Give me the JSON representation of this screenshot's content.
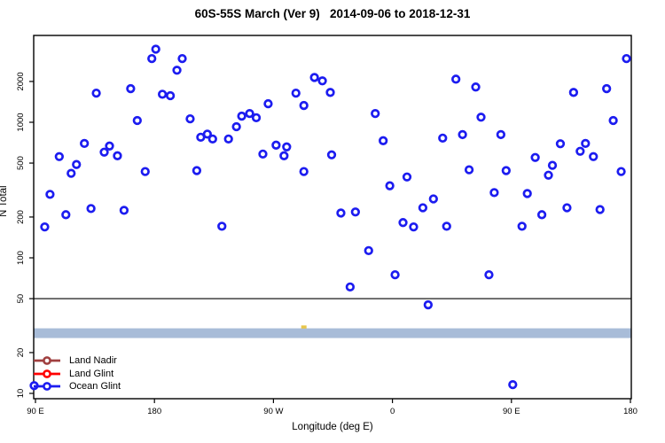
{
  "title": "60S-55S March (Ver 9)   2014-09-06 to 2018-12-31",
  "chart_data": {
    "type": "scatter",
    "title": "60S-55S March (Ver 9)   2014-09-06 to 2018-12-31",
    "xlabel": "Longitude (deg E)",
    "ylabel": "N Total",
    "y_scale": "log",
    "ylim": [
      9,
      4500
    ],
    "x_axis_span_deg": [
      90,
      540
    ],
    "x_ticks": [
      {
        "value": 90,
        "label": "90 E"
      },
      {
        "value": 180,
        "label": "180"
      },
      {
        "value": 270,
        "label": "90 W"
      },
      {
        "value": 360,
        "label": "0"
      },
      {
        "value": 450,
        "label": "90 E"
      },
      {
        "value": 540,
        "label": "180"
      }
    ],
    "y_ticks": [
      10,
      20,
      50,
      100,
      200,
      500,
      1000,
      2000
    ],
    "reference_line_n": 50,
    "band": {
      "n_low": 25.6,
      "n_high": 30.2,
      "color": "#A8BCD8"
    },
    "yellow_mark": {
      "x": 293,
      "n": 31,
      "color": "#E8C64A"
    },
    "legend": [
      {
        "label": "Land Nadir",
        "color": "#A04040"
      },
      {
        "label": "Land Glint",
        "color": "#FF0000"
      },
      {
        "label": "Ocean Glint",
        "color": "#1C1CF0"
      }
    ],
    "series": [
      {
        "name": "Land Nadir",
        "color": "#A04040",
        "points": []
      },
      {
        "name": "Land Glint",
        "color": "#FF0000",
        "points": []
      },
      {
        "name": "Ocean Glint",
        "color": "#1C1CF0",
        "points": [
          [
            181,
            3460
          ],
          [
            178,
            2950
          ],
          [
            201,
            2950
          ],
          [
            197,
            2420
          ],
          [
            162,
            1770
          ],
          [
            136,
            1640
          ],
          [
            186,
            1610
          ],
          [
            192,
            1570
          ],
          [
            167,
            1030
          ],
          [
            207,
            1060
          ],
          [
            242,
            927
          ],
          [
            246,
            1110
          ],
          [
            252,
            1160
          ],
          [
            257,
            1080
          ],
          [
            266,
            1370
          ],
          [
            287,
            1640
          ],
          [
            293,
            1330
          ],
          [
            301,
            2140
          ],
          [
            307,
            2020
          ],
          [
            313,
            1660
          ],
          [
            215,
            776
          ],
          [
            220,
            818
          ],
          [
            224,
            753
          ],
          [
            236,
            753
          ],
          [
            262,
            583
          ],
          [
            272,
            678
          ],
          [
            280,
            658
          ],
          [
            278,
            566
          ],
          [
            127,
            698
          ],
          [
            142,
            602
          ],
          [
            146,
            668
          ],
          [
            152,
            566
          ],
          [
            108,
            558
          ],
          [
            121,
            488
          ],
          [
            117,
            420
          ],
          [
            314,
            575
          ],
          [
            173,
            433
          ],
          [
            212,
            440
          ],
          [
            293,
            433
          ],
          [
            101,
            294
          ],
          [
            113,
            208
          ],
          [
            132,
            231
          ],
          [
            157,
            224
          ],
          [
            97,
            169
          ],
          [
            231,
            171
          ],
          [
            89,
            11.4
          ],
          [
            537,
            2950
          ],
          [
            408,
            2080
          ],
          [
            423,
            1820
          ],
          [
            497,
            1660
          ],
          [
            522,
            1770
          ],
          [
            347,
            1160
          ],
          [
            353,
            731
          ],
          [
            527,
            1030
          ],
          [
            398,
            764
          ],
          [
            413,
            811
          ],
          [
            442,
            811
          ],
          [
            427,
            1090
          ],
          [
            487,
            694
          ],
          [
            506,
            698
          ],
          [
            502,
            611
          ],
          [
            512,
            558
          ],
          [
            468,
            550
          ],
          [
            481,
            481
          ],
          [
            478,
            407
          ],
          [
            418,
            446
          ],
          [
            446,
            440
          ],
          [
            533,
            433
          ],
          [
            358,
            340
          ],
          [
            371,
            395
          ],
          [
            437,
            303
          ],
          [
            462,
            298
          ],
          [
            383,
            234
          ],
          [
            391,
            272
          ],
          [
            321,
            214
          ],
          [
            332,
            218
          ],
          [
            473,
            208
          ],
          [
            492,
            234
          ],
          [
            517,
            227
          ],
          [
            368,
            182
          ],
          [
            376,
            169
          ],
          [
            401,
            171
          ],
          [
            458,
            171
          ],
          [
            342,
            113
          ],
          [
            362,
            75
          ],
          [
            433,
            75
          ],
          [
            328,
            61
          ],
          [
            387,
            45
          ],
          [
            451,
            11.6
          ]
        ]
      }
    ]
  }
}
